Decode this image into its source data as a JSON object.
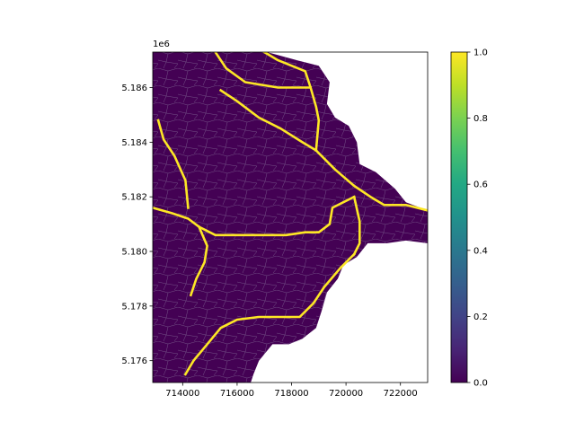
{
  "chart_data": {
    "type": "heatmap",
    "description_kind": "mesh",
    "xlim": [
      712900,
      723000
    ],
    "ylim": [
      5175200,
      5187300
    ],
    "x_offset_label": "",
    "y_offset_label": "1e6",
    "x_ticks": [
      {
        "value": 714000,
        "label": "714000"
      },
      {
        "value": 716000,
        "label": "716000"
      },
      {
        "value": 718000,
        "label": "718000"
      },
      {
        "value": 720000,
        "label": "720000"
      },
      {
        "value": 722000,
        "label": "722000"
      }
    ],
    "y_ticks": [
      {
        "value": 5176000,
        "label": "5.176"
      },
      {
        "value": 5178000,
        "label": "5.178"
      },
      {
        "value": 5180000,
        "label": "5.180"
      },
      {
        "value": 5182000,
        "label": "5.182"
      },
      {
        "value": 5184000,
        "label": "5.184"
      },
      {
        "value": 5186000,
        "label": "5.186"
      }
    ],
    "colorbar": {
      "min": 0.0,
      "max": 1.0,
      "ticks": [
        {
          "value": 0.0,
          "label": "0.0"
        },
        {
          "value": 0.2,
          "label": "0.2"
        },
        {
          "value": 0.4,
          "label": "0.4"
        },
        {
          "value": 0.6,
          "label": "0.6"
        },
        {
          "value": 0.8,
          "label": "0.8"
        },
        {
          "value": 1.0,
          "label": "1.0"
        }
      ]
    },
    "colors": {
      "low": "#440154",
      "high": "#fde725",
      "mesh_edge": "#8a7aa0"
    },
    "domain_boundary": [
      [
        712900,
        5187300
      ],
      [
        717100,
        5187300
      ],
      [
        718200,
        5187000
      ],
      [
        719000,
        5186800
      ],
      [
        719400,
        5186200
      ],
      [
        719300,
        5185400
      ],
      [
        719600,
        5184900
      ],
      [
        720100,
        5184600
      ],
      [
        720400,
        5184000
      ],
      [
        720500,
        5183200
      ],
      [
        721100,
        5182900
      ],
      [
        721800,
        5182300
      ],
      [
        722200,
        5181800
      ],
      [
        723000,
        5181500
      ],
      [
        723000,
        5180300
      ],
      [
        722200,
        5180400
      ],
      [
        721500,
        5180300
      ],
      [
        720800,
        5180300
      ],
      [
        720400,
        5179800
      ],
      [
        719900,
        5179500
      ],
      [
        719700,
        5179000
      ],
      [
        719300,
        5178500
      ],
      [
        719100,
        5177800
      ],
      [
        718900,
        5177200
      ],
      [
        718400,
        5176800
      ],
      [
        717900,
        5176600
      ],
      [
        717300,
        5176600
      ],
      [
        716800,
        5176000
      ],
      [
        716600,
        5175500
      ],
      [
        716500,
        5175200
      ],
      [
        712900,
        5175200
      ]
    ],
    "channels": [
      {
        "values": 1.0,
        "points": [
          [
            715200,
            5187300
          ],
          [
            715600,
            5186700
          ],
          [
            716300,
            5186200
          ],
          [
            717500,
            5186000
          ],
          [
            718700,
            5186000
          ]
        ]
      },
      {
        "values": 1.0,
        "points": [
          [
            717000,
            5187300
          ],
          [
            717500,
            5187000
          ],
          [
            718500,
            5186600
          ],
          [
            718700,
            5186000
          ],
          [
            718900,
            5185300
          ],
          [
            719000,
            5184800
          ],
          [
            718900,
            5183700
          ]
        ]
      },
      {
        "values": 1.0,
        "points": [
          [
            715400,
            5185900
          ],
          [
            716000,
            5185500
          ],
          [
            716800,
            5184900
          ],
          [
            717600,
            5184500
          ],
          [
            718400,
            5184000
          ],
          [
            718900,
            5183700
          ]
        ]
      },
      {
        "values": 1.0,
        "points": [
          [
            718900,
            5183700
          ],
          [
            719600,
            5183000
          ],
          [
            720300,
            5182400
          ],
          [
            720900,
            5182000
          ],
          [
            721400,
            5181700
          ],
          [
            722200,
            5181700
          ],
          [
            723000,
            5181500
          ]
        ]
      },
      {
        "values": 1.0,
        "points": [
          [
            713100,
            5184800
          ],
          [
            713300,
            5184100
          ],
          [
            713700,
            5183500
          ],
          [
            714100,
            5182600
          ],
          [
            714200,
            5181600
          ]
        ]
      },
      {
        "values": 1.0,
        "points": [
          [
            712900,
            5181600
          ],
          [
            713600,
            5181400
          ],
          [
            714200,
            5181200
          ],
          [
            714600,
            5180900
          ],
          [
            715200,
            5180600
          ],
          [
            716200,
            5180600
          ],
          [
            717000,
            5180600
          ],
          [
            717800,
            5180600
          ],
          [
            718500,
            5180700
          ],
          [
            719000,
            5180700
          ],
          [
            719400,
            5181000
          ],
          [
            719500,
            5181600
          ],
          [
            720300,
            5182000
          ]
        ]
      },
      {
        "values": 1.0,
        "points": [
          [
            720300,
            5182000
          ],
          [
            720500,
            5181100
          ],
          [
            720500,
            5180300
          ],
          [
            720300,
            5179900
          ]
        ]
      },
      {
        "values": 1.0,
        "points": [
          [
            720300,
            5179900
          ],
          [
            719800,
            5179400
          ],
          [
            719200,
            5178700
          ],
          [
            718800,
            5178100
          ],
          [
            718300,
            5177600
          ],
          [
            717700,
            5177600
          ],
          [
            716800,
            5177600
          ],
          [
            716000,
            5177500
          ],
          [
            715400,
            5177200
          ],
          [
            714900,
            5176600
          ],
          [
            714400,
            5176000
          ],
          [
            714100,
            5175500
          ]
        ]
      },
      {
        "values": 1.0,
        "points": [
          [
            714600,
            5180900
          ],
          [
            714900,
            5180200
          ],
          [
            714800,
            5179600
          ],
          [
            714500,
            5179000
          ],
          [
            714300,
            5178400
          ]
        ]
      }
    ]
  }
}
